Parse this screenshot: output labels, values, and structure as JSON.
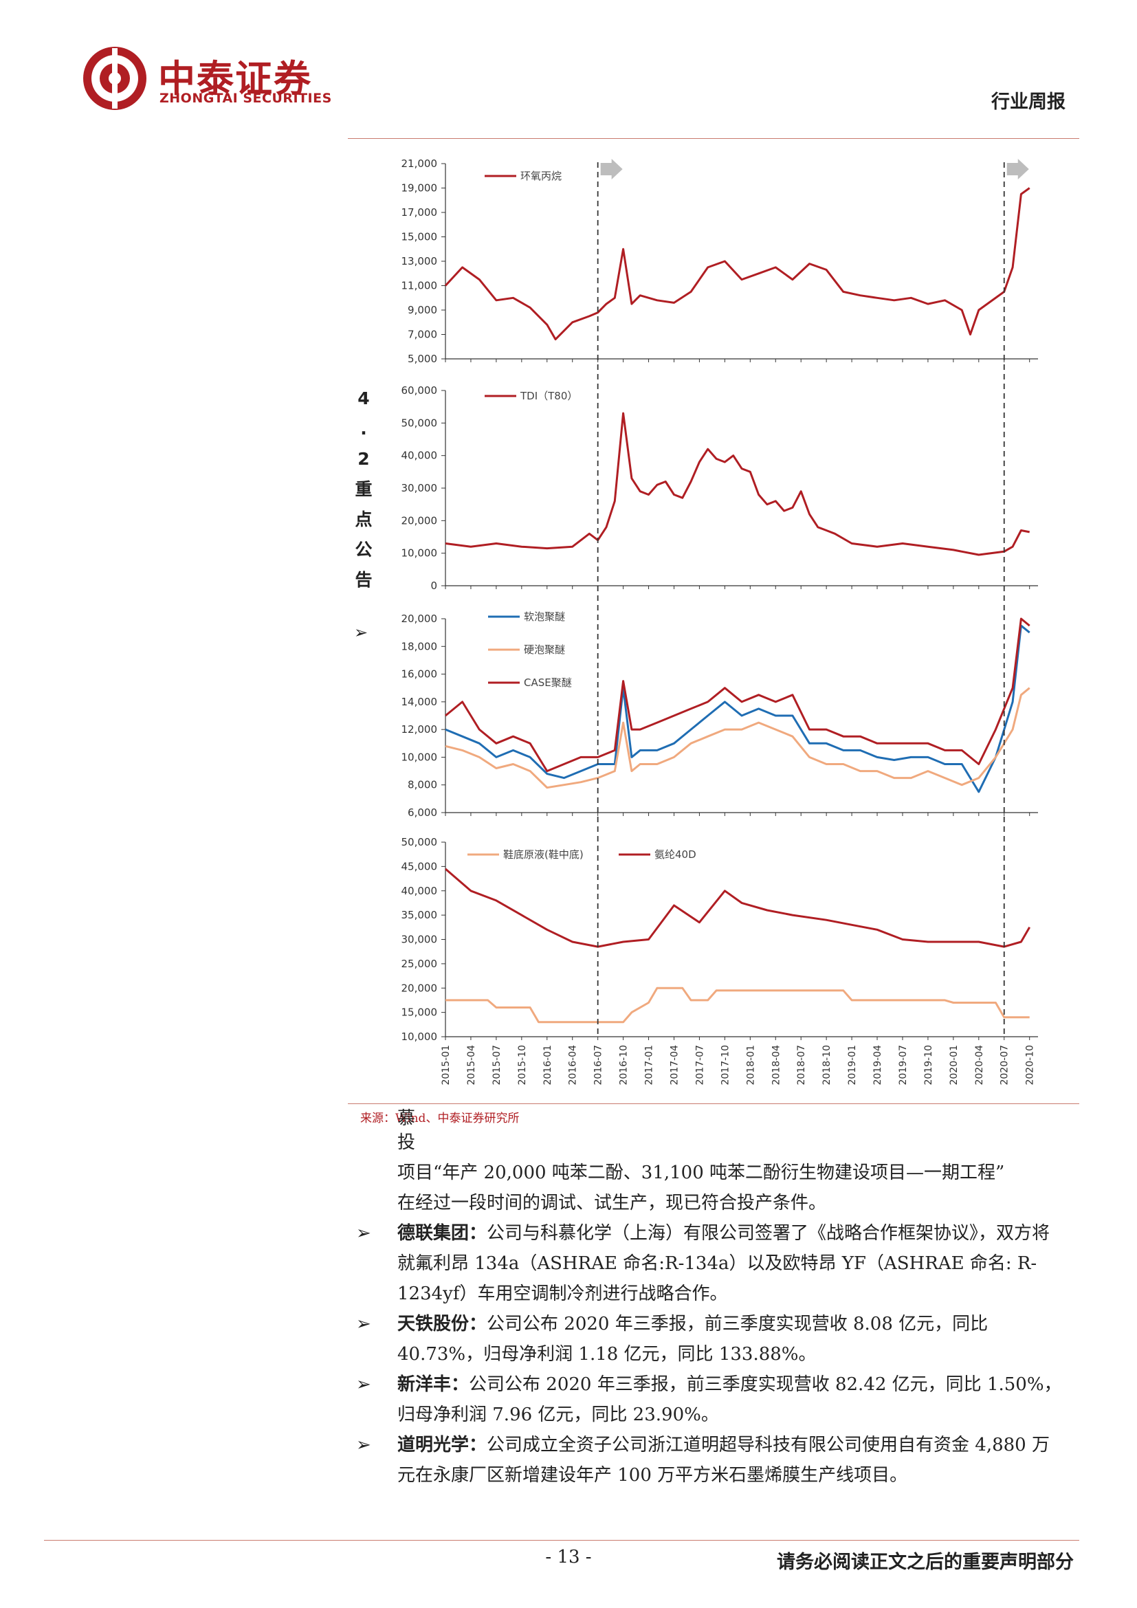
{
  "header": {
    "logo_cn": "中泰证券",
    "logo_en": "ZHONGTAI SECURITIES",
    "doc_type": "行业周报",
    "brand_color": "#b01e23"
  },
  "side_heading_chars": [
    "4",
    ".",
    "2",
    "重",
    "点",
    "公",
    "告"
  ],
  "side_bullet": "➢",
  "chart_data": [
    {
      "type": "line",
      "series": [
        {
          "name": "环氧丙烷",
          "color": "#b01e23",
          "x": [
            "2015-01",
            "2015-03",
            "2015-05",
            "2015-07",
            "2015-09",
            "2015-11",
            "2016-01",
            "2016-02",
            "2016-04",
            "2016-06",
            "2016-07",
            "2016-08",
            "2016-09",
            "2016-10",
            "2016-11",
            "2016-12",
            "2017-02",
            "2017-04",
            "2017-06",
            "2017-08",
            "2017-10",
            "2017-12",
            "2018-02",
            "2018-04",
            "2018-06",
            "2018-08",
            "2018-10",
            "2018-12",
            "2019-02",
            "2019-04",
            "2019-06",
            "2019-08",
            "2019-10",
            "2019-12",
            "2020-02",
            "2020-03",
            "2020-04",
            "2020-05",
            "2020-07",
            "2020-08",
            "2020-09",
            "2020-10"
          ],
          "values": [
            11000,
            12500,
            11500,
            9800,
            10000,
            9200,
            7800,
            6600,
            8000,
            8500,
            8800,
            9500,
            10000,
            14000,
            9500,
            10200,
            9800,
            9600,
            10500,
            12500,
            13000,
            11500,
            12000,
            12500,
            11500,
            12800,
            12300,
            10500,
            10200,
            10000,
            9800,
            10000,
            9500,
            9800,
            9000,
            7000,
            9000,
            9500,
            10500,
            12500,
            18500,
            19000
          ]
        }
      ],
      "ylim": [
        5000,
        21000
      ],
      "y_ticks": [
        "5,000",
        "7,000",
        "9,000",
        "11,000",
        "13,000",
        "15,000",
        "17,000",
        "19,000",
        "21,000"
      ]
    },
    {
      "type": "line",
      "series": [
        {
          "name": "TDI（T80）",
          "color": "#b01e23",
          "x": [
            "2015-01",
            "2015-04",
            "2015-07",
            "2015-10",
            "2016-01",
            "2016-04",
            "2016-06",
            "2016-07",
            "2016-08",
            "2016-09",
            "2016-10",
            "2016-11",
            "2016-12",
            "2017-01",
            "2017-02",
            "2017-03",
            "2017-04",
            "2017-05",
            "2017-06",
            "2017-07",
            "2017-08",
            "2017-09",
            "2017-10",
            "2017-11",
            "2017-12",
            "2018-01",
            "2018-02",
            "2018-03",
            "2018-04",
            "2018-05",
            "2018-06",
            "2018-07",
            "2018-08",
            "2018-09",
            "2018-10",
            "2018-11",
            "2019-01",
            "2019-04",
            "2019-07",
            "2019-10",
            "2020-01",
            "2020-04",
            "2020-07",
            "2020-08",
            "2020-09",
            "2020-10"
          ],
          "values": [
            13000,
            12000,
            13000,
            12000,
            11500,
            12000,
            16000,
            14000,
            18000,
            26000,
            53000,
            33000,
            29000,
            28000,
            31000,
            32000,
            28000,
            27000,
            32000,
            38000,
            42000,
            39000,
            38000,
            40000,
            36000,
            35000,
            28000,
            25000,
            26000,
            23000,
            24000,
            29000,
            22000,
            18000,
            17000,
            16000,
            13000,
            12000,
            13000,
            12000,
            11000,
            9500,
            10500,
            12000,
            17000,
            16500
          ]
        }
      ],
      "ylim": [
        0,
        60000
      ],
      "y_ticks": [
        "0",
        "10,000",
        "20,000",
        "30,000",
        "40,000",
        "50,000",
        "60,000"
      ]
    },
    {
      "type": "line",
      "series": [
        {
          "name": "软泡聚醚",
          "color": "#1f6db3",
          "x": [
            "2015-01",
            "2015-03",
            "2015-05",
            "2015-07",
            "2015-09",
            "2015-11",
            "2016-01",
            "2016-03",
            "2016-05",
            "2016-07",
            "2016-09",
            "2016-10",
            "2016-11",
            "2016-12",
            "2017-02",
            "2017-04",
            "2017-06",
            "2017-08",
            "2017-10",
            "2017-12",
            "2018-02",
            "2018-04",
            "2018-06",
            "2018-08",
            "2018-10",
            "2018-12",
            "2019-02",
            "2019-04",
            "2019-06",
            "2019-08",
            "2019-10",
            "2019-12",
            "2020-02",
            "2020-04",
            "2020-06",
            "2020-08",
            "2020-09",
            "2020-10"
          ],
          "values": [
            12000,
            11500,
            11000,
            10000,
            10500,
            10000,
            8800,
            8500,
            9000,
            9500,
            9500,
            15000,
            10000,
            10500,
            10500,
            11000,
            12000,
            13000,
            14000,
            13000,
            13500,
            13000,
            13000,
            11000,
            11000,
            10500,
            10500,
            10000,
            9800,
            10000,
            10000,
            9500,
            9500,
            7500,
            10000,
            14000,
            19500,
            19000
          ]
        },
        {
          "name": "硬泡聚醚",
          "color": "#f0a97e",
          "x": [
            "2015-01",
            "2015-03",
            "2015-05",
            "2015-07",
            "2015-09",
            "2015-11",
            "2016-01",
            "2016-03",
            "2016-05",
            "2016-07",
            "2016-09",
            "2016-10",
            "2016-11",
            "2016-12",
            "2017-02",
            "2017-04",
            "2017-06",
            "2017-08",
            "2017-10",
            "2017-12",
            "2018-02",
            "2018-04",
            "2018-06",
            "2018-08",
            "2018-10",
            "2018-12",
            "2019-02",
            "2019-04",
            "2019-06",
            "2019-08",
            "2019-10",
            "2019-12",
            "2020-02",
            "2020-04",
            "2020-06",
            "2020-08",
            "2020-09",
            "2020-10"
          ],
          "values": [
            10800,
            10500,
            10000,
            9200,
            9500,
            9000,
            7800,
            8000,
            8200,
            8500,
            9000,
            12500,
            9000,
            9500,
            9500,
            10000,
            11000,
            11500,
            12000,
            12000,
            12500,
            12000,
            11500,
            10000,
            9500,
            9500,
            9000,
            9000,
            8500,
            8500,
            9000,
            8500,
            8000,
            8500,
            10000,
            12000,
            14500,
            15000
          ]
        },
        {
          "name": "CASE聚醚",
          "color": "#b01e23",
          "x": [
            "2015-01",
            "2015-03",
            "2015-05",
            "2015-07",
            "2015-09",
            "2015-11",
            "2016-01",
            "2016-03",
            "2016-05",
            "2016-07",
            "2016-09",
            "2016-10",
            "2016-11",
            "2016-12",
            "2017-02",
            "2017-04",
            "2017-06",
            "2017-08",
            "2017-10",
            "2017-12",
            "2018-02",
            "2018-04",
            "2018-06",
            "2018-08",
            "2018-10",
            "2018-12",
            "2019-02",
            "2019-04",
            "2019-06",
            "2019-08",
            "2019-10",
            "2019-12",
            "2020-02",
            "2020-04",
            "2020-06",
            "2020-08",
            "2020-09",
            "2020-10"
          ],
          "values": [
            13000,
            14000,
            12000,
            11000,
            11500,
            11000,
            9000,
            9500,
            10000,
            10000,
            10500,
            15500,
            12000,
            12000,
            12500,
            13000,
            13500,
            14000,
            15000,
            14000,
            14500,
            14000,
            14500,
            12000,
            12000,
            11500,
            11500,
            11000,
            11000,
            11000,
            11000,
            10500,
            10500,
            9500,
            12000,
            15000,
            20000,
            19500
          ]
        }
      ],
      "ylim": [
        6000,
        20000
      ],
      "y_ticks": [
        "6,000",
        "8,000",
        "10,000",
        "12,000",
        "14,000",
        "16,000",
        "18,000",
        "20,000"
      ]
    },
    {
      "type": "line",
      "series": [
        {
          "name": "鞋底原液(鞋中底)",
          "color": "#f0a97e",
          "x": [
            "2015-01",
            "2015-06",
            "2015-07",
            "2015-11",
            "2015-12",
            "2016-10",
            "2016-11",
            "2017-01",
            "2017-02",
            "2017-05",
            "2017-06",
            "2017-08",
            "2017-09",
            "2018-12",
            "2019-01",
            "2019-12",
            "2020-01",
            "2020-06",
            "2020-07",
            "2020-10"
          ],
          "values": [
            17500,
            17500,
            16000,
            16000,
            13000,
            13000,
            15000,
            17000,
            20000,
            20000,
            17500,
            17500,
            19500,
            19500,
            17500,
            17500,
            17000,
            17000,
            14000,
            14000
          ]
        },
        {
          "name": "氨纶40D",
          "color": "#b01e23",
          "x": [
            "2015-01",
            "2015-04",
            "2015-07",
            "2015-10",
            "2016-01",
            "2016-04",
            "2016-07",
            "2016-10",
            "2017-01",
            "2017-04",
            "2017-07",
            "2017-10",
            "2017-12",
            "2018-03",
            "2018-06",
            "2018-10",
            "2019-01",
            "2019-04",
            "2019-07",
            "2019-10",
            "2020-01",
            "2020-04",
            "2020-07",
            "2020-09",
            "2020-10"
          ],
          "values": [
            44500,
            40000,
            38000,
            35000,
            32000,
            29500,
            28500,
            29500,
            30000,
            37000,
            33500,
            40000,
            37500,
            36000,
            35000,
            34000,
            33000,
            32000,
            30000,
            29500,
            29500,
            29500,
            28500,
            29500,
            32500
          ]
        }
      ],
      "ylim": [
        10000,
        50000
      ],
      "y_ticks": [
        "10,000",
        "15,000",
        "20,000",
        "25,000",
        "30,000",
        "35,000",
        "40,000",
        "45,000",
        "50,000"
      ]
    }
  ],
  "x_axis_ticks": [
    "2015-01",
    "2015-04",
    "2015-07",
    "2015-10",
    "2016-01",
    "2016-04",
    "2016-07",
    "2016-10",
    "2017-01",
    "2017-04",
    "2017-07",
    "2017-10",
    "2018-01",
    "2018-04",
    "2018-07",
    "2018-10",
    "2019-01",
    "2019-04",
    "2019-07",
    "2019-10",
    "2020-01",
    "2020-04",
    "2020-07",
    "2020-10"
  ],
  "marker_dates": [
    "2016-07",
    "2020-07"
  ],
  "source": "来源：Wind、中泰证券研究所",
  "text": {
    "overlap_a": "慕",
    "overlap_b": "投",
    "line1": "项目“年产 20,000 吨苯二酚、31,100 吨苯二酚衍生物建设项目—一期工程”",
    "line2": "在经过一段时间的调试、试生产，现已符合投产条件。",
    "bullets": [
      {
        "title": "德联集团：",
        "body": "公司与科慕化学（上海）有限公司签署了《战略合作框架协议》，双方将就氟利昂 134a（ASHRAE 命名:R-134a）以及欧特昂 YF（ASHRAE 命名: R-1234yf）车用空调制冷剂进行战略合作。"
      },
      {
        "title": "天铁股份：",
        "body": "公司公布 2020 年三季报，前三季度实现营收 8.08 亿元，同比 40.73%，归母净利润 1.18 亿元，同比 133.88%。"
      },
      {
        "title": "新洋丰：",
        "body": "公司公布 2020 年三季报，前三季度实现营收 82.42 亿元，同比 1.50%，归母净利润 7.96 亿元，同比 23.90%。"
      },
      {
        "title": "道明光学：",
        "body": "公司成立全资子公司浙江道明超导科技有限公司使用自有资金 4,880 万元在永康厂区新增建设年产 100 万平方米石墨烯膜生产线项目。"
      }
    ],
    "bullet_glyph": "➢"
  },
  "footer": {
    "page_number": "- 13 -",
    "note": "请务必阅读正文之后的重要声明部分"
  }
}
